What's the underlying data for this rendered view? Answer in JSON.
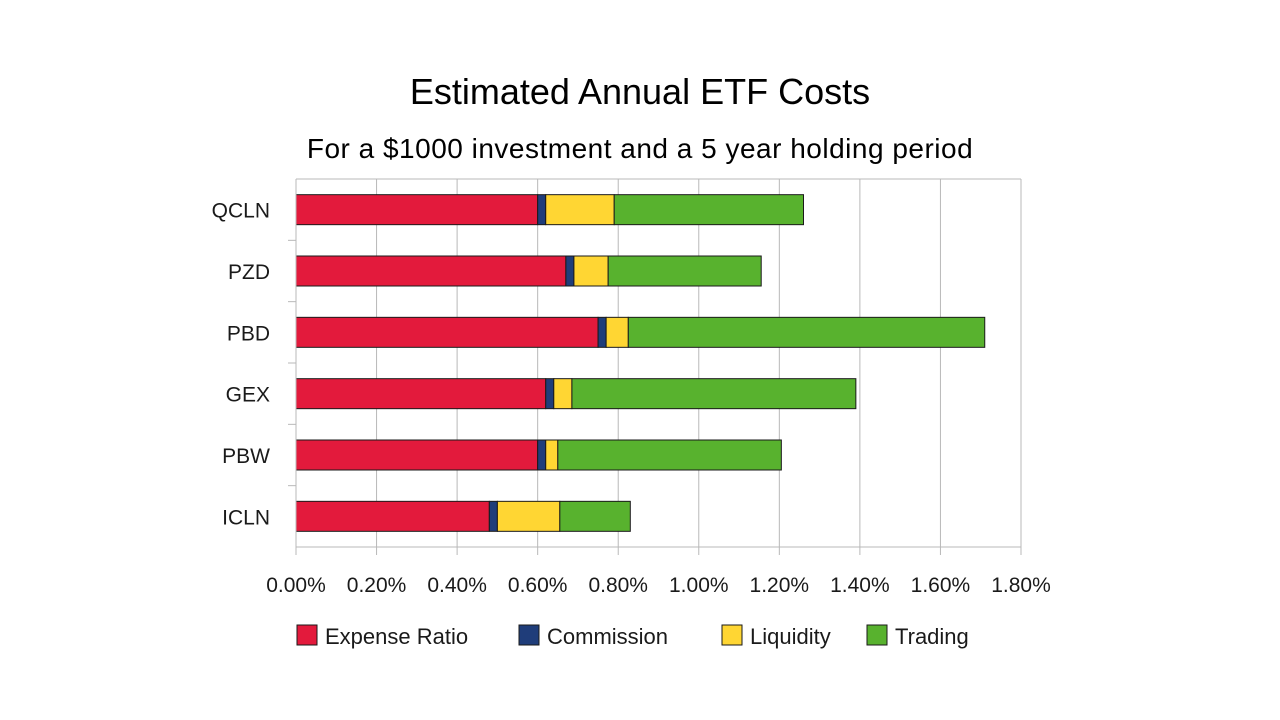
{
  "chart_data": {
    "type": "bar",
    "orientation": "horizontal",
    "stacked": true,
    "title": "Estimated Annual ETF Costs",
    "subtitle": "For a $1000 investment and a 5 year holding period",
    "xlabel": "",
    "ylabel": "",
    "xlim": [
      0,
      1.8
    ],
    "x_ticks": [
      "0.00%",
      "0.20%",
      "0.40%",
      "0.60%",
      "0.80%",
      "1.00%",
      "1.20%",
      "1.40%",
      "1.60%",
      "1.80%"
    ],
    "grid": true,
    "legend_position": "bottom",
    "categories": [
      "QCLN",
      "PZD",
      "PBD",
      "GEX",
      "PBW",
      "ICLN"
    ],
    "series": [
      {
        "name": "Expense Ratio",
        "color": "#e31a3c",
        "values": [
          0.6,
          0.67,
          0.75,
          0.62,
          0.6,
          0.48
        ]
      },
      {
        "name": "Commission",
        "color": "#1f3d7a",
        "values": [
          0.02,
          0.02,
          0.02,
          0.02,
          0.02,
          0.02
        ]
      },
      {
        "name": "Liquidity",
        "color": "#ffd633",
        "values": [
          0.17,
          0.085,
          0.055,
          0.045,
          0.03,
          0.155
        ]
      },
      {
        "name": "Trading",
        "color": "#58b22e",
        "values": [
          0.47,
          0.38,
          0.885,
          0.705,
          0.555,
          0.175
        ]
      }
    ]
  }
}
